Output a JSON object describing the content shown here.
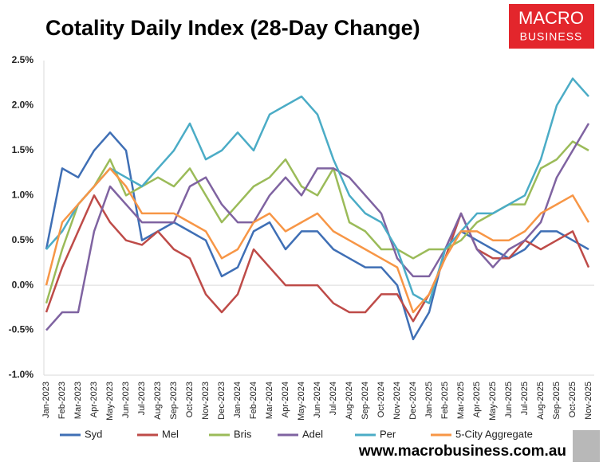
{
  "chart_data": {
    "type": "line",
    "title": "Cotality Daily Index (28-Day Change)",
    "categories": [
      "Jan-2023",
      "Feb-2023",
      "Mar-2023",
      "Apr-2023",
      "May-2023",
      "Jun-2023",
      "Jul-2023",
      "Aug-2023",
      "Sep-2023",
      "Oct-2023",
      "Nov-2023",
      "Dec-2023",
      "Jan-2024",
      "Feb-2024",
      "Mar-2024",
      "Apr-2024",
      "May-2024",
      "Jun-2024",
      "Jul-2024",
      "Aug-2024",
      "Sep-2024",
      "Oct-2024",
      "Nov-2024",
      "Dec-2024",
      "Jan-2025",
      "Feb-2025",
      "Mar-2025",
      "Apr-2025",
      "May-2025",
      "Jun-2025",
      "Jul-2025",
      "Aug-2025",
      "Sep-2025",
      "Oct-2025",
      "Nov-2025"
    ],
    "series": [
      {
        "name": "Syd",
        "color": "#3f6fb5",
        "values": [
          0.4,
          1.3,
          1.2,
          1.5,
          1.7,
          1.5,
          0.5,
          0.6,
          0.7,
          0.6,
          0.5,
          0.1,
          0.2,
          0.6,
          0.7,
          0.4,
          0.6,
          0.6,
          0.4,
          0.3,
          0.2,
          0.2,
          0.0,
          -0.6,
          -0.3,
          0.4,
          0.6,
          0.5,
          0.4,
          0.3,
          0.4,
          0.6,
          0.6,
          0.5,
          0.4
        ]
      },
      {
        "name": "Mel",
        "color": "#be4b48",
        "values": [
          -0.3,
          0.2,
          0.6,
          1.0,
          0.7,
          0.5,
          0.45,
          0.6,
          0.4,
          0.3,
          -0.1,
          -0.3,
          -0.1,
          0.4,
          0.2,
          0.0,
          0.0,
          0.0,
          -0.2,
          -0.3,
          -0.3,
          -0.1,
          -0.1,
          -0.4,
          -0.1,
          0.3,
          0.8,
          0.4,
          0.3,
          0.3,
          0.5,
          0.4,
          0.5,
          0.6,
          0.2
        ]
      },
      {
        "name": "Bris",
        "color": "#9bbb59",
        "values": [
          -0.2,
          0.4,
          0.9,
          1.1,
          1.4,
          1.0,
          1.1,
          1.2,
          1.1,
          1.3,
          1.0,
          0.7,
          0.9,
          1.1,
          1.2,
          1.4,
          1.1,
          1.0,
          1.3,
          0.7,
          0.6,
          0.4,
          0.4,
          0.3,
          0.4,
          0.4,
          0.5,
          0.7,
          0.8,
          0.9,
          0.9,
          1.3,
          1.4,
          1.6,
          1.5
        ]
      },
      {
        "name": "Adel",
        "color": "#7f63a1",
        "values": [
          -0.5,
          -0.3,
          -0.3,
          0.6,
          1.1,
          0.9,
          0.7,
          0.7,
          0.7,
          1.1,
          1.2,
          0.9,
          0.7,
          0.7,
          1.0,
          1.2,
          1.0,
          1.3,
          1.3,
          1.2,
          1.0,
          0.8,
          0.3,
          0.1,
          0.1,
          0.4,
          0.8,
          0.4,
          0.2,
          0.4,
          0.5,
          0.7,
          1.2,
          1.5,
          1.8
        ]
      },
      {
        "name": "Per",
        "color": "#4bacc6",
        "values": [
          0.4,
          0.6,
          0.9,
          1.1,
          1.3,
          1.2,
          1.1,
          1.3,
          1.5,
          1.8,
          1.4,
          1.5,
          1.7,
          1.5,
          1.9,
          2.0,
          2.1,
          1.9,
          1.4,
          1.0,
          0.8,
          0.7,
          0.4,
          -0.1,
          -0.2,
          0.4,
          0.6,
          0.8,
          0.8,
          0.9,
          1.0,
          1.4,
          2.0,
          2.3,
          2.1
        ]
      },
      {
        "name": "5-City Aggregate",
        "color": "#f79646",
        "values": [
          0.0,
          0.7,
          0.9,
          1.1,
          1.3,
          1.1,
          0.8,
          0.8,
          0.8,
          0.7,
          0.6,
          0.3,
          0.4,
          0.7,
          0.8,
          0.6,
          0.7,
          0.8,
          0.6,
          0.5,
          0.4,
          0.3,
          0.2,
          -0.3,
          -0.1,
          0.3,
          0.6,
          0.6,
          0.5,
          0.5,
          0.6,
          0.8,
          0.9,
          1.0,
          0.7
        ]
      }
    ],
    "ylim": [
      -1.0,
      2.5
    ],
    "yticks": [
      {
        "value": -1.0,
        "label": "-1.0%"
      },
      {
        "value": -0.5,
        "label": "-0.5%"
      },
      {
        "value": 0,
        "label": "0.0%"
      },
      {
        "value": 0.5,
        "label": "0.5%"
      },
      {
        "value": 1.0,
        "label": "1.0%"
      },
      {
        "value": 1.5,
        "label": "1.5%"
      },
      {
        "value": 2.0,
        "label": "2.0%"
      },
      {
        "value": 2.5,
        "label": "2.5%"
      }
    ],
    "legend": "bottom"
  },
  "logo": {
    "line1": "MACRO",
    "line2": "BUSINESS"
  },
  "footer": "www.macrobusiness.com.au"
}
